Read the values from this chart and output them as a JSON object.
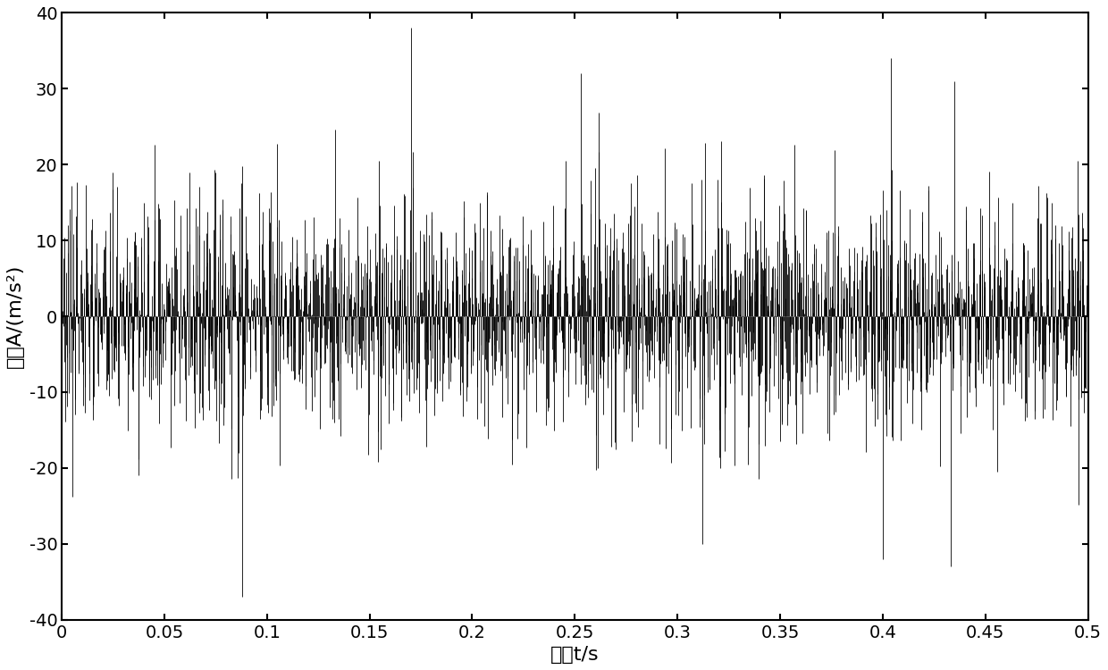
{
  "title": "",
  "xlabel": "时间t/s",
  "ylabel": "幅値A/(m/s²)",
  "xlim": [
    0,
    0.5
  ],
  "ylim": [
    -40,
    40
  ],
  "xticks": [
    0,
    0.05,
    0.1,
    0.15,
    0.2,
    0.25,
    0.3,
    0.35,
    0.4,
    0.45,
    0.5
  ],
  "yticks": [
    -40,
    -30,
    -20,
    -10,
    0,
    10,
    20,
    30,
    40
  ],
  "line_color": "#000000",
  "line_width": 0.6,
  "background_color": "#ffffff",
  "sample_rate": 5000,
  "duration": 0.5,
  "seed": 12345,
  "xlabel_fontsize": 16,
  "ylabel_fontsize": 16,
  "tick_fontsize": 14,
  "figsize": [
    12.4,
    7.5
  ],
  "dpi": 100
}
